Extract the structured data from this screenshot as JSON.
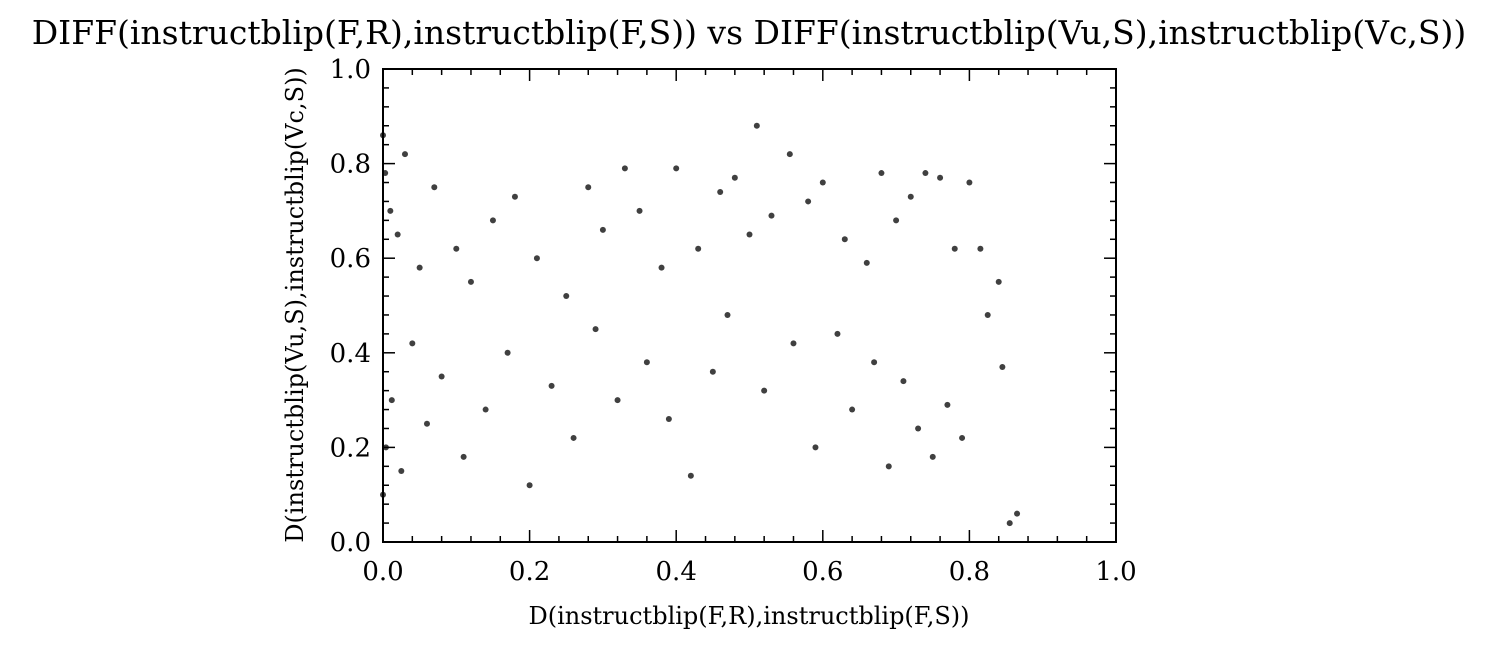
{
  "chart_data": {
    "type": "scatter",
    "title": "DIFF(instructblip(F,R),instructblip(F,S)) vs DIFF(instructblip(Vu,S),instructblip(Vc,S))",
    "xlabel": "D(instructblip(F,R),instructblip(F,S))",
    "ylabel": "D(instructblip(Vu,S),instructblip(Vc,S))",
    "xlim": [
      0.0,
      1.0
    ],
    "ylim": [
      0.0,
      1.0
    ],
    "xticks": [
      "0.0",
      "0.2",
      "0.4",
      "0.6",
      "0.8",
      "1.0"
    ],
    "yticks": [
      "0.0",
      "0.2",
      "0.4",
      "0.6",
      "0.8",
      "1.0"
    ],
    "grid": false,
    "marker_color": "#000000",
    "series": [
      {
        "x": [
          0.0,
          0.003,
          0.01,
          0.02,
          0.03,
          0.05,
          0.07,
          0.1,
          0.12,
          0.15,
          0.18,
          0.21,
          0.25,
          0.28,
          0.3,
          0.33,
          0.35,
          0.38,
          0.4,
          0.43,
          0.46,
          0.48,
          0.5,
          0.51,
          0.53,
          0.555,
          0.58,
          0.6,
          0.63,
          0.66,
          0.68,
          0.7,
          0.72,
          0.74,
          0.76,
          0.78,
          0.8,
          0.815,
          0.825,
          0.84,
          0.845,
          0.855,
          0.865,
          0.0,
          0.004,
          0.012,
          0.025,
          0.04,
          0.06,
          0.08,
          0.11,
          0.14,
          0.17,
          0.2,
          0.23,
          0.26,
          0.29,
          0.32,
          0.36,
          0.39,
          0.42,
          0.45,
          0.47,
          0.52,
          0.56,
          0.59,
          0.62,
          0.64,
          0.67,
          0.69,
          0.71,
          0.73,
          0.75,
          0.77,
          0.79
        ],
        "y": [
          0.86,
          0.78,
          0.7,
          0.65,
          0.82,
          0.58,
          0.75,
          0.62,
          0.55,
          0.68,
          0.73,
          0.6,
          0.52,
          0.75,
          0.66,
          0.79,
          0.7,
          0.58,
          0.79,
          0.62,
          0.74,
          0.77,
          0.65,
          0.88,
          0.69,
          0.82,
          0.72,
          0.76,
          0.64,
          0.59,
          0.78,
          0.68,
          0.73,
          0.78,
          0.77,
          0.62,
          0.76,
          0.62,
          0.48,
          0.55,
          0.37,
          0.04,
          0.06,
          0.1,
          0.2,
          0.3,
          0.15,
          0.42,
          0.25,
          0.35,
          0.18,
          0.28,
          0.4,
          0.12,
          0.33,
          0.22,
          0.45,
          0.3,
          0.38,
          0.26,
          0.14,
          0.36,
          0.48,
          0.32,
          0.42,
          0.2,
          0.44,
          0.28,
          0.38,
          0.16,
          0.34,
          0.24,
          0.18,
          0.29,
          0.22
        ]
      }
    ]
  }
}
